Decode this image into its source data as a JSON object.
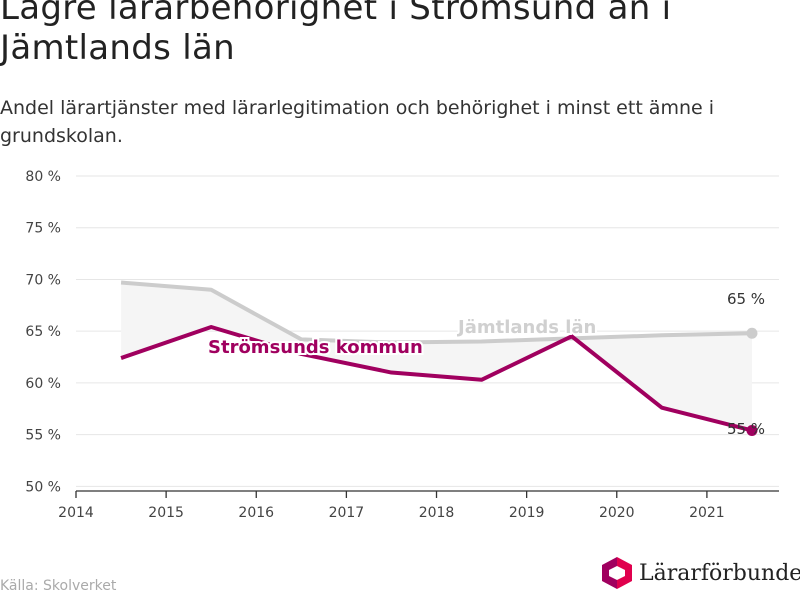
{
  "title": "Lägre lärarbehörighet i Strömsund än i Jämtlands län",
  "subtitle": "Andel lärartjänster med lärarlegitimation och behörighet i minst ett ämne i grundskolan.",
  "source": "Källa: Skolverket",
  "logo_text": "Lärarförbundet",
  "colors": {
    "jamtland": "#cccccc",
    "stromsund": "#a0005f",
    "band": "#f5f5f5",
    "logo_left": "#a0005f",
    "logo_right": "#e0004d"
  },
  "chart_data": {
    "type": "line",
    "xlim": [
      2014,
      2021.8
    ],
    "ylim": [
      48,
      80
    ],
    "x_ticks": [
      2014,
      2015,
      2016,
      2017,
      2018,
      2019,
      2020,
      2021
    ],
    "y_ticks": [
      50,
      55,
      60,
      65,
      70,
      75,
      80
    ],
    "y_tick_suffix": " %",
    "x": [
      2014.5,
      2015.5,
      2016.5,
      2017.5,
      2018.5,
      2019.5,
      2020.5,
      2021.5
    ],
    "series": [
      {
        "key": "jamtland",
        "name": "Jämtlands län",
        "values": [
          69.7,
          69.0,
          64.2,
          63.9,
          64.0,
          64.3,
          64.6,
          64.8
        ],
        "end_label": "65 %"
      },
      {
        "key": "stromsund",
        "name": "Strömsunds kommun",
        "values": [
          62.4,
          65.4,
          62.8,
          61.0,
          60.3,
          64.5,
          57.6,
          55.4
        ],
        "end_label": "55 %"
      }
    ],
    "grid": true
  }
}
